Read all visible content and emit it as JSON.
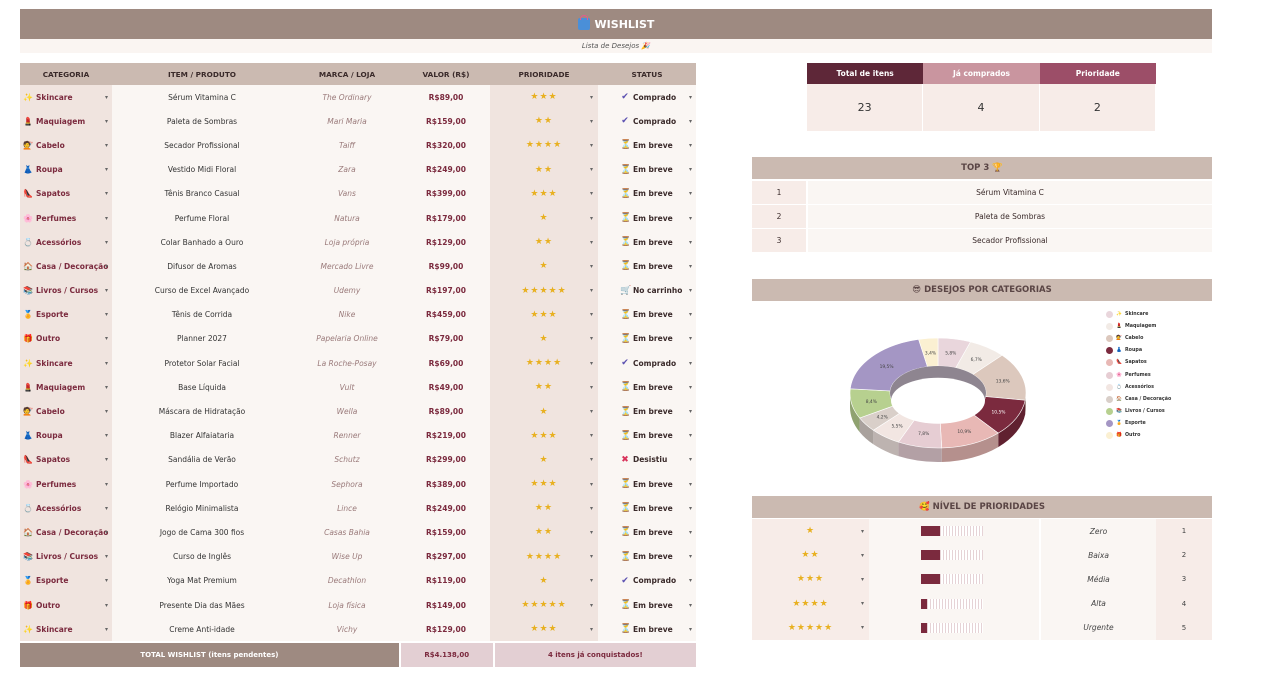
{
  "title": "WISHLIST",
  "subtitle": "Lista de Desejos 🎉",
  "table": {
    "headers": [
      "CATEGORIA",
      "ITEM / PRODUTO",
      "MARCA / LOJA",
      "VALOR (R$)",
      "PRIORIDADE",
      "STATUS"
    ],
    "rows": [
      {
        "cat": "Skincare",
        "icon": "✨",
        "item": "Sérum Vitamina C",
        "brand": "The Ordinary",
        "value": "R$89,00",
        "prio": "★★★",
        "status": "Comprado",
        "sicon": "✔"
      },
      {
        "cat": "Maquiagem",
        "icon": "💄",
        "item": "Paleta de Sombras",
        "brand": "Mari Maria",
        "value": "R$159,00",
        "prio": "★★",
        "status": "Comprado",
        "sicon": "✔"
      },
      {
        "cat": "Cabelo",
        "icon": "💇",
        "item": "Secador Profissional",
        "brand": "Taiff",
        "value": "R$320,00",
        "prio": "★★★★",
        "status": "Em breve",
        "sicon": "⏳"
      },
      {
        "cat": "Roupa",
        "icon": "👗",
        "item": "Vestido Midi Floral",
        "brand": "Zara",
        "value": "R$249,00",
        "prio": "★★",
        "status": "Em breve",
        "sicon": "⏳"
      },
      {
        "cat": "Sapatos",
        "icon": "👠",
        "item": "Tênis Branco Casual",
        "brand": "Vans",
        "value": "R$399,00",
        "prio": "★★★",
        "status": "Em breve",
        "sicon": "⏳"
      },
      {
        "cat": "Perfumes",
        "icon": "🌸",
        "item": "Perfume Floral",
        "brand": "Natura",
        "value": "R$179,00",
        "prio": "★",
        "status": "Em breve",
        "sicon": "⏳"
      },
      {
        "cat": "Acessórios",
        "icon": "💍",
        "item": "Colar Banhado a Ouro",
        "brand": "Loja própria",
        "value": "R$129,00",
        "prio": "★★",
        "status": "Em breve",
        "sicon": "⏳"
      },
      {
        "cat": "Casa / Decoração",
        "icon": "🏠",
        "item": "Difusor de Aromas",
        "brand": "Mercado Livre",
        "value": "R$99,00",
        "prio": "★",
        "status": "Em breve",
        "sicon": "⏳"
      },
      {
        "cat": "Livros / Cursos",
        "icon": "📚",
        "item": "Curso de Excel Avançado",
        "brand": "Udemy",
        "value": "R$197,00",
        "prio": "★★★★★",
        "status": "No carrinho",
        "sicon": "🛒"
      },
      {
        "cat": "Esporte",
        "icon": "🏅",
        "item": "Tênis de Corrida",
        "brand": "Nike",
        "value": "R$459,00",
        "prio": "★★★",
        "status": "Em breve",
        "sicon": "⏳"
      },
      {
        "cat": "Outro",
        "icon": "🎁",
        "item": "Planner 2027",
        "brand": "Papelaria Online",
        "value": "R$79,00",
        "prio": "★",
        "status": "Em breve",
        "sicon": "⏳"
      },
      {
        "cat": "Skincare",
        "icon": "✨",
        "item": "Protetor Solar Facial",
        "brand": "La Roche-Posay",
        "value": "R$69,00",
        "prio": "★★★★",
        "status": "Comprado",
        "sicon": "✔"
      },
      {
        "cat": "Maquiagem",
        "icon": "💄",
        "item": "Base Líquida",
        "brand": "Vult",
        "value": "R$49,00",
        "prio": "★★",
        "status": "Em breve",
        "sicon": "⏳"
      },
      {
        "cat": "Cabelo",
        "icon": "💇",
        "item": "Máscara de Hidratação",
        "brand": "Wella",
        "value": "R$89,00",
        "prio": "★",
        "status": "Em breve",
        "sicon": "⏳"
      },
      {
        "cat": "Roupa",
        "icon": "👗",
        "item": "Blazer Alfaiataria",
        "brand": "Renner",
        "value": "R$219,00",
        "prio": "★★★",
        "status": "Em breve",
        "sicon": "⏳"
      },
      {
        "cat": "Sapatos",
        "icon": "👠",
        "item": "Sandália de Verão",
        "brand": "Schutz",
        "value": "R$299,00",
        "prio": "★",
        "status": "Desistiu",
        "sicon": "✖"
      },
      {
        "cat": "Perfumes",
        "icon": "🌸",
        "item": "Perfume Importado",
        "brand": "Sephora",
        "value": "R$389,00",
        "prio": "★★★",
        "status": "Em breve",
        "sicon": "⏳"
      },
      {
        "cat": "Acessórios",
        "icon": "💍",
        "item": "Relógio Minimalista",
        "brand": "Lince",
        "value": "R$249,00",
        "prio": "★★",
        "status": "Em breve",
        "sicon": "⏳"
      },
      {
        "cat": "Casa / Decoração",
        "icon": "🏠",
        "item": "Jogo de Cama 300 fios",
        "brand": "Casas Bahia",
        "value": "R$159,00",
        "prio": "★★",
        "status": "Em breve",
        "sicon": "⏳"
      },
      {
        "cat": "Livros / Cursos",
        "icon": "📚",
        "item": "Curso de Inglês",
        "brand": "Wise Up",
        "value": "R$297,00",
        "prio": "★★★★",
        "status": "Em breve",
        "sicon": "⏳"
      },
      {
        "cat": "Esporte",
        "icon": "🏅",
        "item": "Yoga Mat Premium",
        "brand": "Decathlon",
        "value": "R$119,00",
        "prio": "★",
        "status": "Comprado",
        "sicon": "✔"
      },
      {
        "cat": "Outro",
        "icon": "🎁",
        "item": "Presente Dia das Mães",
        "brand": "Loja física",
        "value": "R$149,00",
        "prio": "★★★★★",
        "status": "Em breve",
        "sicon": "⏳"
      },
      {
        "cat": "Skincare",
        "icon": "✨",
        "item": "Creme Anti-idade",
        "brand": "Vichy",
        "value": "R$129,00",
        "prio": "★★★",
        "status": "Em breve",
        "sicon": "⏳"
      }
    ],
    "total_label": "TOTAL WISHLIST (itens pendentes)",
    "total_value": "R$4.138,00",
    "total_note": "4 itens já conquistados!"
  },
  "summary": [
    {
      "label": "Total de itens",
      "value": "23",
      "color": "#5e2738"
    },
    {
      "label": "Já comprados",
      "value": "4",
      "color": "#c9959f"
    },
    {
      "label": "Prioridade",
      "value": "2",
      "color": "#9c4e68"
    }
  ],
  "top3": {
    "title": "TOP 3 🏆",
    "items": [
      {
        "n": "1",
        "t": "Sérum Vitamina C"
      },
      {
        "n": "2",
        "t": "Paleta de Sombras"
      },
      {
        "n": "3",
        "t": "Secador Profissional"
      }
    ]
  },
  "categories_title": "😎 DESEJOS POR CATEGORIAS",
  "chart_data": {
    "type": "pie",
    "categories": [
      "Skincare",
      "Maquiagem",
      "Cabelo",
      "Roupa",
      "Sapatos",
      "Perfumes",
      "Acessórios",
      "Casa / Decoração",
      "Livros / Cursos",
      "Esporte",
      "Outro"
    ],
    "values": [
      5.8,
      6.7,
      13.6,
      10.5,
      10.9,
      7.8,
      5.5,
      4.2,
      8.4,
      19.5,
      3.4
    ],
    "labels": [
      "5,8%",
      "6,7%",
      "13,6%",
      "10,5%",
      "10,9%",
      "7,8%",
      "5,5%",
      "4,2%",
      "8,4%",
      "19,5%",
      "3,4%"
    ],
    "colors": [
      "#e9d6dc",
      "#f2ebe6",
      "#dcc8bd",
      "#7b2a3e",
      "#e8b8b5",
      "#e6cdd3",
      "#f2e6e2",
      "#d9cfc9",
      "#b7d08f",
      "#a496c4",
      "#fbf0d2"
    ],
    "legend_icons": [
      "✨",
      "💄",
      "💇",
      "👗",
      "👠",
      "🌸",
      "💍",
      "🏠",
      "📚",
      "🏅",
      "🎁"
    ]
  },
  "levels": {
    "title": "🥰 NÍVEL DE PRIORIDADES",
    "rows": [
      {
        "stars": "★",
        "label": "Zero",
        "num": "1",
        "fill": 0.3
      },
      {
        "stars": "★★",
        "label": "Baixa",
        "num": "2",
        "fill": 0.3
      },
      {
        "stars": "★★★",
        "label": "Média",
        "num": "3",
        "fill": 0.3
      },
      {
        "stars": "★★★★",
        "label": "Alta",
        "num": "4",
        "fill": 0.1
      },
      {
        "stars": "★★★★★",
        "label": "Urgente",
        "num": "5",
        "fill": 0.1
      }
    ]
  }
}
